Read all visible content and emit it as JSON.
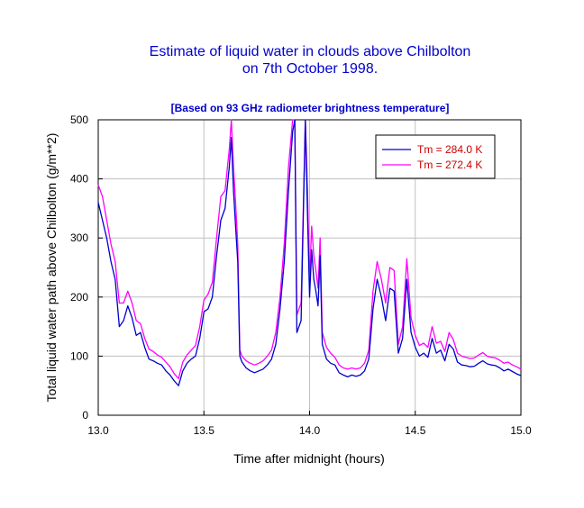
{
  "chart_data": {
    "type": "line",
    "title": [
      "Estimate of liquid water in clouds above Chilbolton",
      "on 7th October 1998."
    ],
    "subtitle": "[Based on 93 GHz radiometer brightness temperature]",
    "xlabel": "Time after midnight  (hours)",
    "ylabel": "Total liquid water path above Chilbolton  (g/m**2)",
    "xlim": [
      13.0,
      15.0
    ],
    "ylim": [
      0,
      500
    ],
    "xticks": [
      "13.0",
      "13.5",
      "14.0",
      "14.5",
      "15.0"
    ],
    "xtick_values": [
      13.0,
      13.5,
      14.0,
      14.5,
      15.0
    ],
    "yticks": [
      "0",
      "100",
      "200",
      "300",
      "400",
      "500"
    ],
    "ytick_values": [
      0,
      100,
      200,
      300,
      400,
      500
    ],
    "grid": true,
    "legend_position": "top-right",
    "series": [
      {
        "name": "Tm = 284.0 K",
        "color": "#0000cc",
        "x": [
          13.0,
          13.02,
          13.04,
          13.06,
          13.08,
          13.1,
          13.12,
          13.14,
          13.16,
          13.18,
          13.2,
          13.22,
          13.24,
          13.26,
          13.28,
          13.3,
          13.32,
          13.34,
          13.36,
          13.38,
          13.4,
          13.42,
          13.44,
          13.46,
          13.48,
          13.5,
          13.52,
          13.54,
          13.56,
          13.58,
          13.6,
          13.62,
          13.63,
          13.64,
          13.65,
          13.66,
          13.67,
          13.68,
          13.7,
          13.72,
          13.74,
          13.76,
          13.78,
          13.8,
          13.82,
          13.84,
          13.86,
          13.88,
          13.9,
          13.92,
          13.93,
          13.94,
          13.96,
          13.98,
          13.99,
          14.0,
          14.01,
          14.02,
          14.03,
          14.04,
          14.05,
          14.06,
          14.08,
          14.1,
          14.12,
          14.14,
          14.16,
          14.18,
          14.2,
          14.22,
          14.24,
          14.26,
          14.28,
          14.3,
          14.32,
          14.34,
          14.36,
          14.38,
          14.4,
          14.42,
          14.44,
          14.46,
          14.48,
          14.5,
          14.52,
          14.54,
          14.56,
          14.58,
          14.6,
          14.62,
          14.64,
          14.66,
          14.68,
          14.7,
          14.72,
          14.74,
          14.76,
          14.78,
          14.8,
          14.82,
          14.84,
          14.86,
          14.88,
          14.9,
          14.92,
          14.94,
          14.96,
          14.98,
          15.0
        ],
        "y": [
          360,
          330,
          300,
          260,
          230,
          150,
          160,
          185,
          165,
          135,
          140,
          115,
          95,
          92,
          88,
          85,
          75,
          68,
          58,
          50,
          75,
          88,
          95,
          100,
          130,
          175,
          180,
          200,
          270,
          330,
          350,
          420,
          470,
          380,
          320,
          260,
          100,
          90,
          80,
          75,
          72,
          75,
          78,
          85,
          95,
          120,
          180,
          260,
          380,
          480,
          500,
          140,
          160,
          500,
          340,
          200,
          280,
          230,
          210,
          185,
          270,
          120,
          95,
          88,
          85,
          72,
          68,
          65,
          68,
          66,
          68,
          75,
          95,
          180,
          230,
          200,
          160,
          215,
          210,
          105,
          130,
          230,
          140,
          115,
          100,
          105,
          98,
          130,
          105,
          110,
          92,
          120,
          112,
          90,
          85,
          84,
          82,
          83,
          88,
          92,
          87,
          85,
          84,
          80,
          75,
          78,
          74,
          70,
          67
        ]
      },
      {
        "name": "Tm = 272.4 K",
        "color": "#ff00ff",
        "x": [
          13.0,
          13.02,
          13.04,
          13.06,
          13.08,
          13.1,
          13.12,
          13.14,
          13.16,
          13.18,
          13.2,
          13.22,
          13.24,
          13.26,
          13.28,
          13.3,
          13.32,
          13.34,
          13.36,
          13.38,
          13.4,
          13.42,
          13.44,
          13.46,
          13.48,
          13.5,
          13.52,
          13.54,
          13.56,
          13.58,
          13.6,
          13.62,
          13.63,
          13.64,
          13.65,
          13.66,
          13.67,
          13.68,
          13.7,
          13.72,
          13.74,
          13.76,
          13.78,
          13.8,
          13.82,
          13.84,
          13.86,
          13.88,
          13.9,
          13.92,
          13.93,
          13.94,
          13.96,
          13.98,
          13.99,
          14.0,
          14.01,
          14.02,
          14.03,
          14.04,
          14.05,
          14.06,
          14.08,
          14.1,
          14.12,
          14.14,
          14.16,
          14.18,
          14.2,
          14.22,
          14.24,
          14.26,
          14.28,
          14.3,
          14.32,
          14.34,
          14.36,
          14.38,
          14.4,
          14.42,
          14.44,
          14.46,
          14.48,
          14.5,
          14.52,
          14.54,
          14.56,
          14.58,
          14.6,
          14.62,
          14.64,
          14.66,
          14.68,
          14.7,
          14.72,
          14.74,
          14.76,
          14.78,
          14.8,
          14.82,
          14.84,
          14.86,
          14.88,
          14.9,
          14.92,
          14.94,
          14.96,
          14.98,
          15.0
        ],
        "y": [
          390,
          370,
          330,
          290,
          260,
          190,
          190,
          210,
          190,
          160,
          155,
          130,
          112,
          108,
          102,
          98,
          90,
          82,
          70,
          62,
          90,
          102,
          110,
          118,
          150,
          195,
          205,
          225,
          300,
          370,
          380,
          450,
          500,
          420,
          360,
          290,
          110,
          100,
          92,
          88,
          85,
          88,
          92,
          100,
          110,
          140,
          200,
          290,
          420,
          500,
          500,
          170,
          190,
          500,
          380,
          230,
          320,
          270,
          245,
          215,
          300,
          140,
          115,
          105,
          98,
          85,
          80,
          78,
          80,
          78,
          80,
          88,
          110,
          210,
          260,
          230,
          190,
          250,
          245,
          120,
          150,
          265,
          165,
          135,
          118,
          122,
          115,
          150,
          122,
          125,
          108,
          140,
          128,
          105,
          100,
          98,
          96,
          97,
          102,
          106,
          100,
          98,
          97,
          93,
          88,
          90,
          85,
          82,
          78
        ]
      }
    ]
  }
}
